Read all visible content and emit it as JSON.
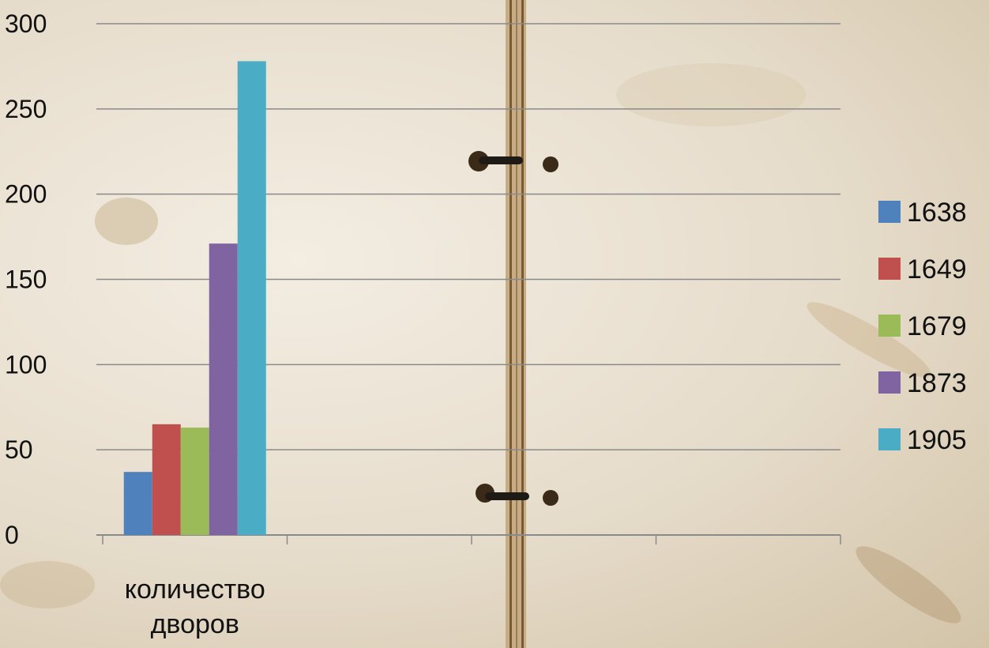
{
  "chart_data": {
    "type": "bar",
    "categories": [
      "количество дворов",
      "",
      "",
      ""
    ],
    "category_label_lines": [
      "количество",
      "дворов"
    ],
    "series": [
      {
        "name": "1638",
        "values": [
          37,
          null,
          null,
          null
        ],
        "color": "#4f81bd"
      },
      {
        "name": "1649",
        "values": [
          65,
          null,
          null,
          null
        ],
        "color": "#c0504d"
      },
      {
        "name": "1679",
        "values": [
          63,
          null,
          null,
          null
        ],
        "color": "#9bbb59"
      },
      {
        "name": "1873",
        "values": [
          171,
          null,
          null,
          null
        ],
        "color": "#8064a2"
      },
      {
        "name": "1905",
        "values": [
          278,
          null,
          null,
          null
        ],
        "color": "#4bacc6"
      }
    ],
    "yticks": [
      "0",
      "50",
      "100",
      "150",
      "200",
      "250",
      "300"
    ],
    "ylim": [
      0,
      300
    ],
    "grid": true,
    "legend": "right",
    "title": "",
    "xlabel": "",
    "ylabel": ""
  },
  "decor": {
    "background": "aged-paper-texture",
    "binding": "notebook-spine-with-rings"
  }
}
